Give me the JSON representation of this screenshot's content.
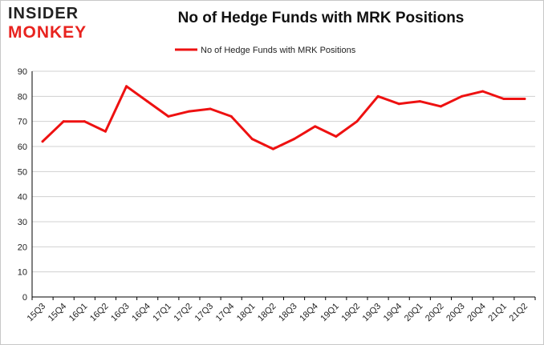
{
  "logo": {
    "line1": "INSIDER",
    "line2": "MONKEY"
  },
  "colors": {
    "series": "#ee1111",
    "grid": "#d0d0d0",
    "axis": "#000000",
    "logo_red": "#e8231f"
  },
  "chart_data": {
    "type": "line",
    "title": "No of Hedge Funds with MRK Positions",
    "xlabel": "",
    "ylabel": "",
    "ylim": [
      0,
      90
    ],
    "yticks": [
      0,
      10,
      20,
      30,
      40,
      50,
      60,
      70,
      80,
      90
    ],
    "grid": true,
    "legend_position": "top-center",
    "categories": [
      "15Q3",
      "15Q4",
      "16Q1",
      "16Q2",
      "16Q3",
      "16Q4",
      "17Q1",
      "17Q2",
      "17Q3",
      "17Q4",
      "18Q1",
      "18Q2",
      "18Q3",
      "18Q4",
      "19Q1",
      "19Q2",
      "19Q3",
      "19Q4",
      "20Q1",
      "20Q2",
      "20Q3",
      "20Q4",
      "21Q1",
      "21Q2"
    ],
    "series": [
      {
        "name": "No of Hedge Funds with MRK Positions",
        "values": [
          62,
          70,
          70,
          66,
          84,
          78,
          72,
          74,
          75,
          72,
          63,
          59,
          63,
          68,
          64,
          70,
          80,
          77,
          78,
          76,
          80,
          82,
          79,
          79
        ]
      }
    ]
  }
}
